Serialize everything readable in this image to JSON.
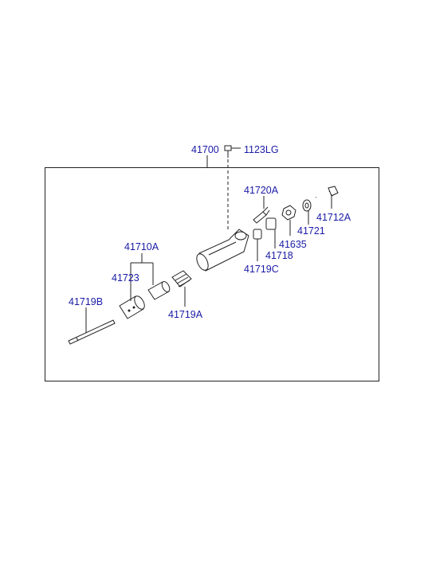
{
  "labels": {
    "assembly": "41700",
    "bolt_top": "1123LG",
    "bleeder": "41720A",
    "bolt_right": "41712A",
    "washer": "41721",
    "nut": "41635",
    "spring_seat": "41718",
    "cap": "41719C",
    "piston_kit": "41710A",
    "piston": "41723",
    "rod": "41719B",
    "boot": "41719A"
  }
}
